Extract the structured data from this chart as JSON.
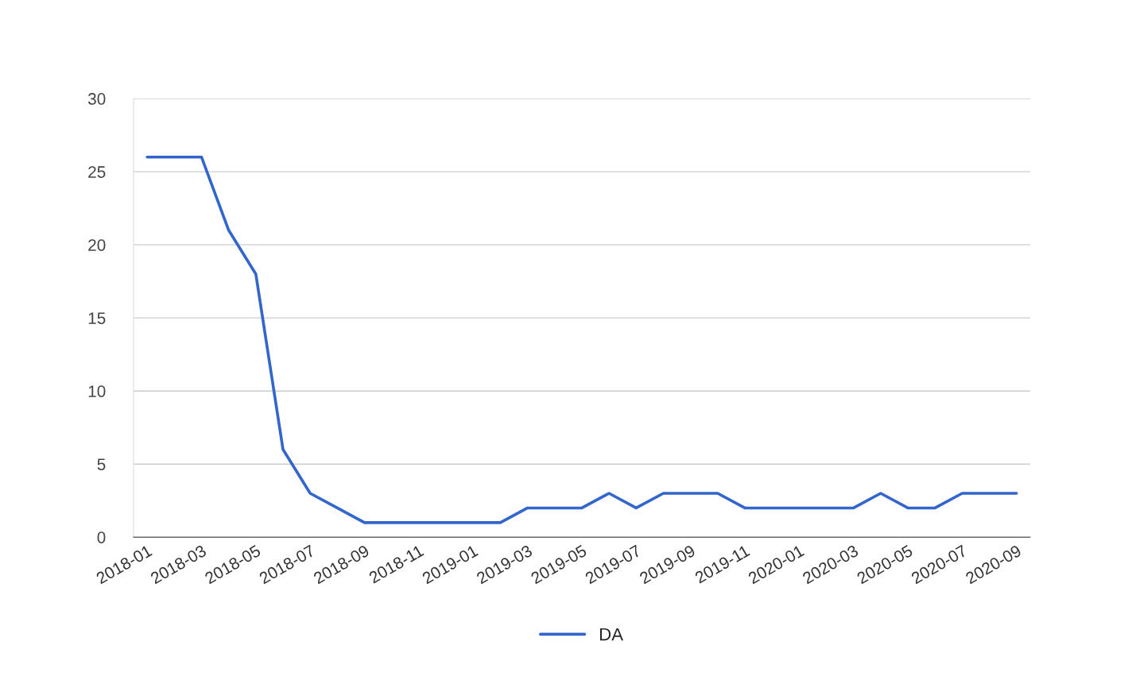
{
  "chart_data": {
    "type": "line",
    "categories": [
      "2018-01",
      null,
      "2018-03",
      null,
      "2018-05",
      null,
      "2018-07",
      null,
      "2018-09",
      null,
      "2018-11",
      null,
      "2019-01",
      null,
      "2019-03",
      null,
      "2019-05",
      null,
      "2019-07",
      null,
      "2019-09",
      null,
      "2019-11",
      null,
      "2020-01",
      null,
      "2020-03",
      null,
      "2020-05",
      null,
      "2020-07",
      null,
      "2020-09"
    ],
    "series": [
      {
        "name": "DA",
        "color": "#3366cc",
        "values": [
          26,
          26,
          26,
          21,
          18,
          6,
          3,
          2,
          1,
          1,
          1,
          1,
          1,
          1,
          2,
          2,
          2,
          3,
          2,
          3,
          3,
          3,
          2,
          2,
          2,
          2,
          2,
          3,
          2,
          2,
          3,
          3,
          3
        ]
      }
    ],
    "ylim": [
      0,
      30
    ],
    "yticks": [
      0,
      5,
      10,
      15,
      20,
      25,
      30
    ],
    "grid": "y",
    "legend": "bottom",
    "marker": "none",
    "line_style": "solid"
  }
}
